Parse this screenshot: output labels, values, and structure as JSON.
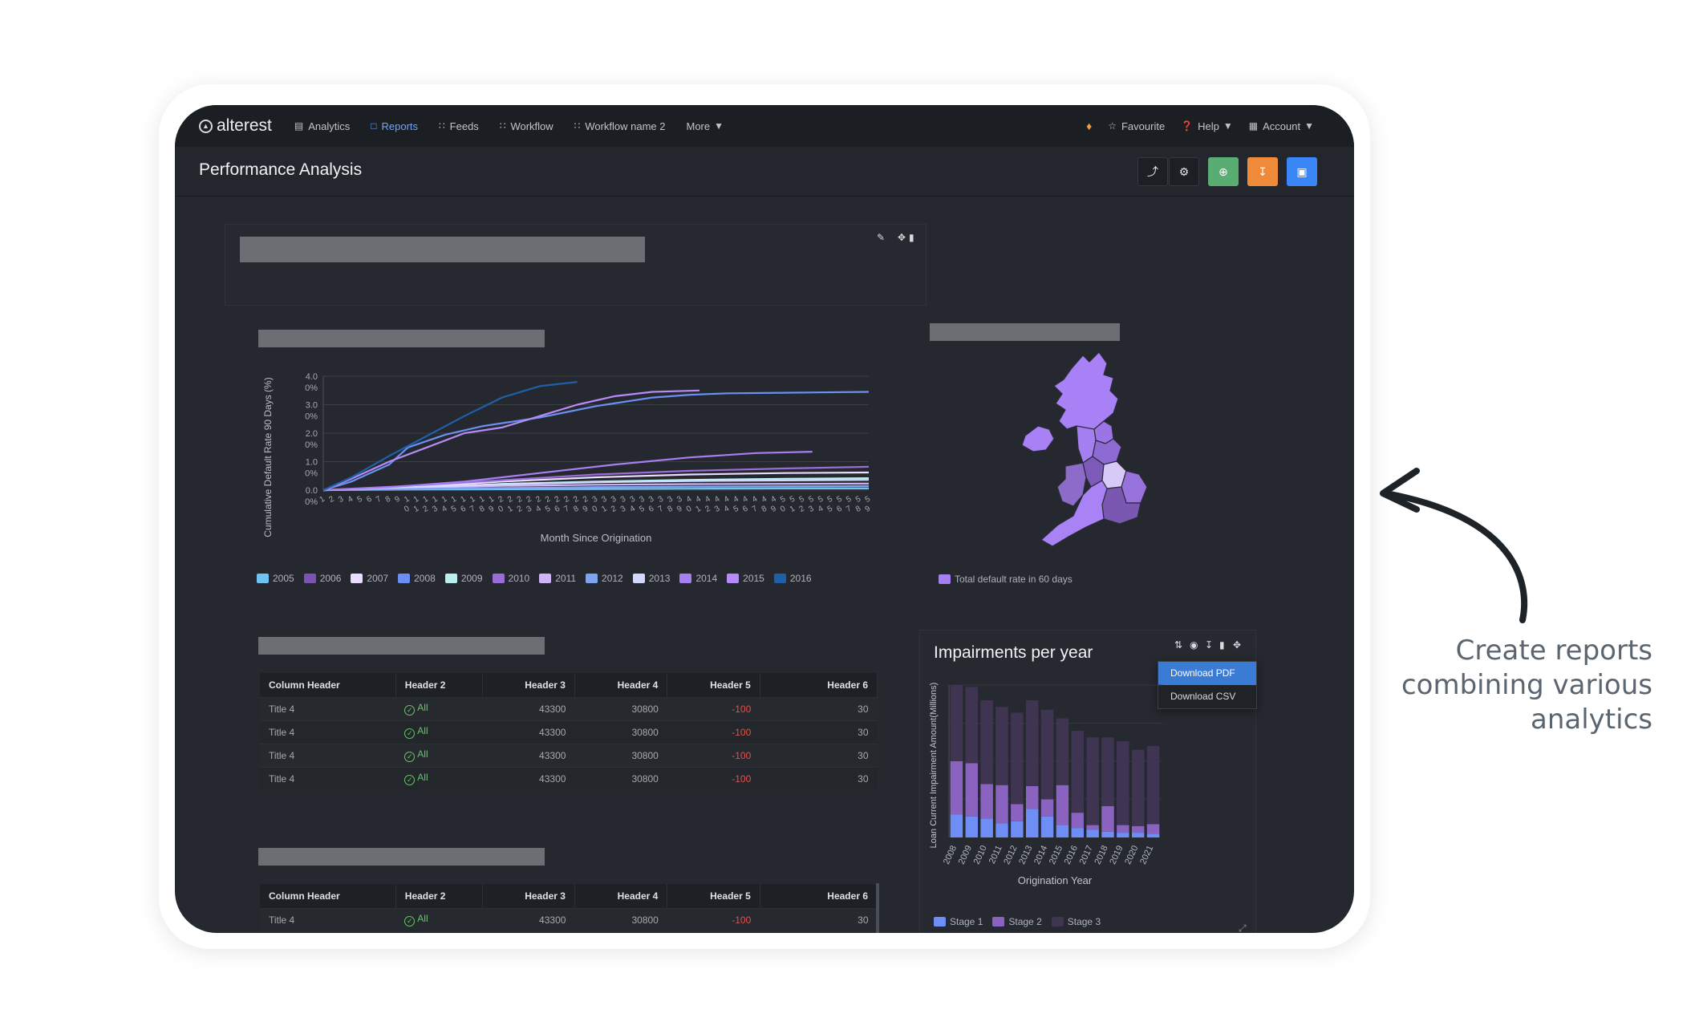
{
  "nav": {
    "logo": "alterest",
    "items": [
      {
        "label": "Analytics",
        "icon": "bar-chart-icon"
      },
      {
        "label": "Reports",
        "icon": "file-icon"
      },
      {
        "label": "Feeds",
        "icon": "rss-icon"
      },
      {
        "label": "Workflow",
        "icon": "rss-icon"
      },
      {
        "label": "Workflow name 2",
        "icon": "rss-icon"
      },
      {
        "label": "More",
        "icon": "caret-down-icon"
      }
    ],
    "favourite": "Favourite",
    "help": "Help",
    "account": "Account"
  },
  "header": {
    "title": "Performance Analysis"
  },
  "line_chart": {
    "chart_data": {
      "type": "line",
      "ylabel": "Cumulative Default Rate 90 Days (%)",
      "xlabel": "Month Since Origination",
      "y_ticks": [
        "0.0 0%",
        "1.0 0%",
        "2.0 0%",
        "3.0 0%",
        "4.0 0%"
      ],
      "ylim": [
        0,
        4
      ],
      "xlim": [
        1,
        59
      ],
      "series": [
        {
          "name": "2005",
          "color": "#6ec3f0",
          "x": [
            1,
            10,
            20,
            30,
            40,
            50,
            59
          ],
          "y": [
            0,
            0.02,
            0.03,
            0.04,
            0.05,
            0.06,
            0.06
          ]
        },
        {
          "name": "2006",
          "color": "#7b54b3",
          "x": [
            1,
            10,
            20,
            30,
            40,
            50,
            59
          ],
          "y": [
            0,
            0.05,
            0.08,
            0.1,
            0.12,
            0.13,
            0.14
          ]
        },
        {
          "name": "2007",
          "color": "#e8dcff",
          "x": [
            1,
            10,
            20,
            30,
            40,
            50,
            59
          ],
          "y": [
            0,
            0.1,
            0.3,
            0.45,
            0.55,
            0.6,
            0.62
          ]
        },
        {
          "name": "2008",
          "color": "#6b8ff2",
          "x": [
            1,
            4,
            8,
            10,
            14,
            18,
            24,
            30,
            36,
            40,
            44,
            50,
            59
          ],
          "y": [
            0,
            0.3,
            0.9,
            1.5,
            1.95,
            2.25,
            2.55,
            2.95,
            3.25,
            3.35,
            3.4,
            3.42,
            3.45
          ]
        },
        {
          "name": "2009",
          "color": "#b9f0ee",
          "x": [
            1,
            10,
            20,
            30,
            40,
            50,
            59
          ],
          "y": [
            0,
            0.08,
            0.22,
            0.3,
            0.36,
            0.4,
            0.42
          ]
        },
        {
          "name": "2010",
          "color": "#9a6cd6",
          "x": [
            1,
            10,
            20,
            30,
            40,
            50,
            59
          ],
          "y": [
            0,
            0.15,
            0.35,
            0.55,
            0.68,
            0.76,
            0.82
          ]
        },
        {
          "name": "2011",
          "color": "#cdb5f7",
          "x": [
            1,
            10,
            20,
            30,
            40,
            50,
            59
          ],
          "y": [
            0,
            0.08,
            0.15,
            0.19,
            0.21,
            0.22,
            0.23
          ]
        },
        {
          "name": "2012",
          "color": "#7fa3ef",
          "x": [
            1,
            10,
            20,
            30,
            40,
            50,
            59
          ],
          "y": [
            0,
            0.04,
            0.07,
            0.1,
            0.12,
            0.13,
            0.14
          ]
        },
        {
          "name": "2013",
          "color": "#d3d8ff",
          "x": [
            1,
            10,
            20,
            30,
            40,
            50,
            59
          ],
          "y": [
            0,
            0.1,
            0.2,
            0.28,
            0.32,
            0.34,
            0.36
          ]
        },
        {
          "name": "2014",
          "color": "#a77ff0",
          "x": [
            1,
            8,
            16,
            24,
            32,
            40,
            47,
            53
          ],
          "y": [
            0,
            0.1,
            0.3,
            0.6,
            0.9,
            1.15,
            1.3,
            1.35
          ]
        },
        {
          "name": "2015",
          "color": "#b58cf5",
          "x": [
            1,
            4,
            8,
            12,
            16,
            20,
            24,
            28,
            32,
            36,
            41
          ],
          "y": [
            0,
            0.4,
            1.0,
            1.5,
            2.0,
            2.2,
            2.6,
            3.0,
            3.3,
            3.45,
            3.5
          ]
        },
        {
          "name": "2016",
          "color": "#1f5fa8",
          "x": [
            1,
            4,
            8,
            12,
            16,
            20,
            24,
            28
          ],
          "y": [
            0,
            0.45,
            1.2,
            1.9,
            2.6,
            3.25,
            3.65,
            3.8
          ]
        }
      ]
    }
  },
  "map": {
    "legend": "Total default rate in 60 days",
    "legend_color": "#a77ff0"
  },
  "table1": {
    "headers": [
      "Column Header",
      "Header 2",
      "Header 3",
      "Header 4",
      "Header 5",
      "Header 6"
    ],
    "rows": [
      [
        "Title 4",
        "All",
        "43300",
        "30800",
        "-100",
        "30"
      ],
      [
        "Title 4",
        "All",
        "43300",
        "30800",
        "-100",
        "30"
      ],
      [
        "Title 4",
        "All",
        "43300",
        "30800",
        "-100",
        "30"
      ],
      [
        "Title 4",
        "All",
        "43300",
        "30800",
        "-100",
        "30"
      ]
    ]
  },
  "table2": {
    "headers": [
      "Column Header",
      "Header 2",
      "Header 3",
      "Header 4",
      "Header 5",
      "Header 6"
    ],
    "rows": [
      [
        "Title 4",
        "All",
        "43300",
        "30800",
        "-100",
        "30"
      ]
    ]
  },
  "impairments": {
    "title": "Impairments per year",
    "dropdown": [
      "Download PDF",
      "Download CSV"
    ],
    "chart_data": {
      "type": "bar",
      "stacked": true,
      "title": "Impairments per year",
      "xlabel": "Origination Year",
      "ylabel": "Loan Current Impairment Amount(Millions)",
      "categories": [
        "2008",
        "2009",
        "2010",
        "2011",
        "2012",
        "2013",
        "2014",
        "2015",
        "2016",
        "2017",
        "2018",
        "2019",
        "2020",
        "2021"
      ],
      "ymax": 160,
      "series": [
        {
          "name": "Stage 1",
          "color": "#6e8df5",
          "values": [
            24,
            22,
            20,
            15,
            17,
            30,
            22,
            13,
            10,
            8,
            6,
            5,
            5,
            4
          ]
        },
        {
          "name": "Stage 2",
          "color": "#8a63c1",
          "values": [
            56,
            56,
            36,
            40,
            18,
            24,
            18,
            42,
            16,
            5,
            27,
            8,
            7,
            10
          ]
        },
        {
          "name": "Stage 3",
          "color": "#3f3552",
          "values": [
            80,
            80,
            88,
            82,
            96,
            90,
            94,
            70,
            86,
            92,
            72,
            88,
            80,
            82
          ]
        }
      ]
    }
  },
  "annotation": {
    "lines": [
      "Create reports",
      "combining various",
      "analytics"
    ]
  }
}
